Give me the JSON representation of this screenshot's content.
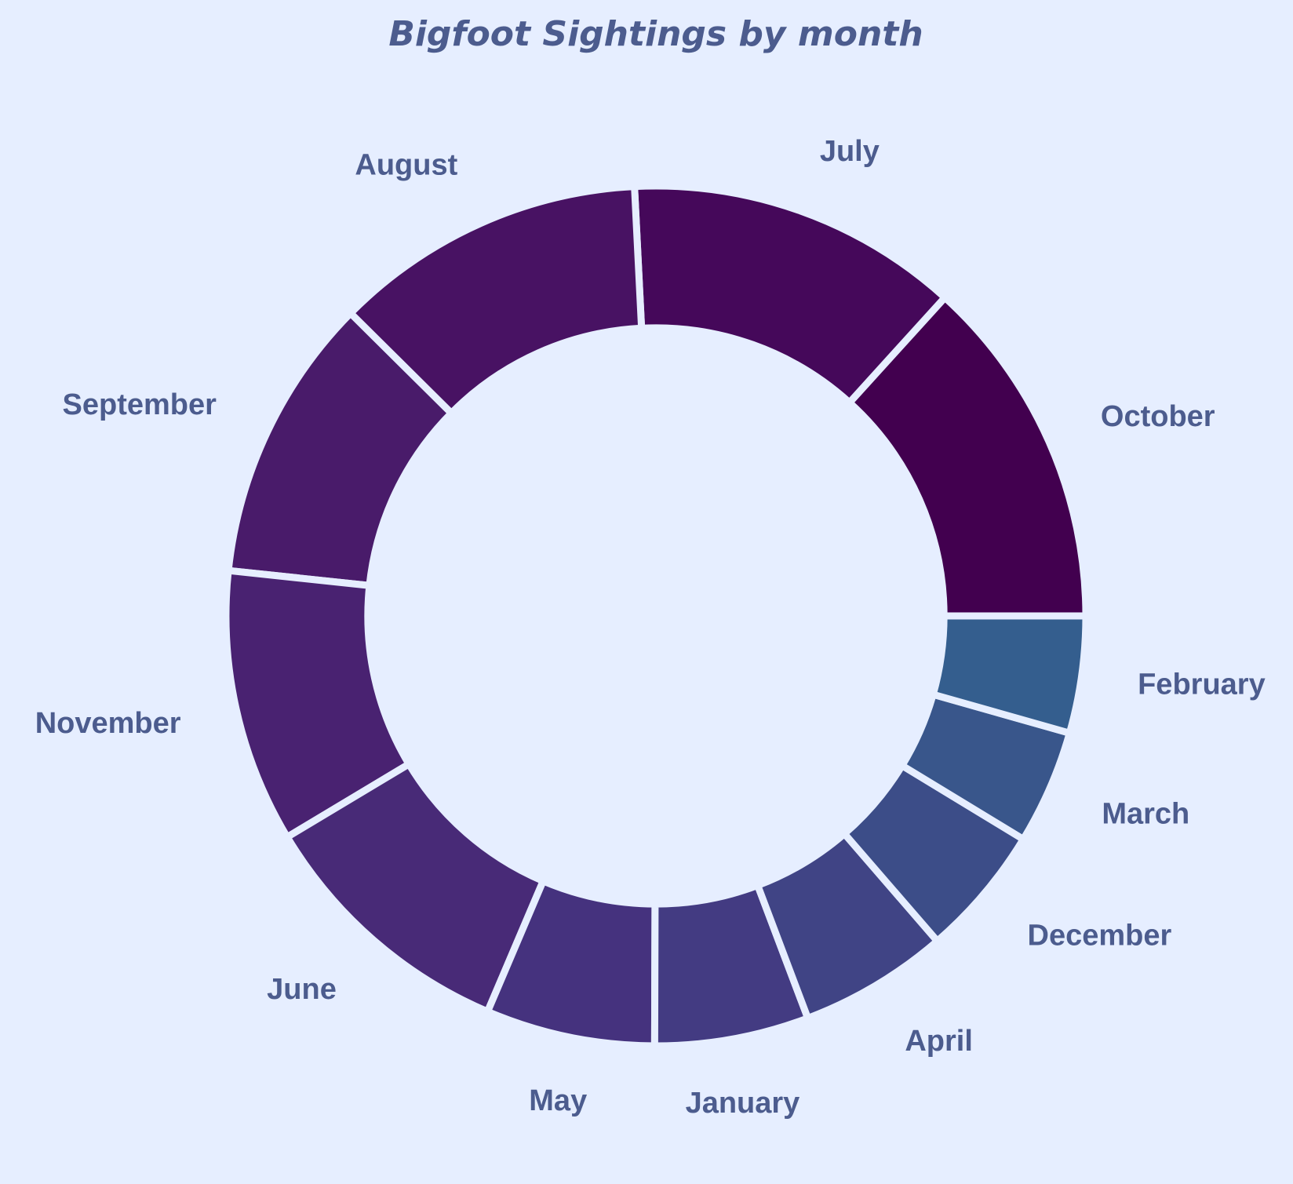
{
  "chart_data": {
    "type": "pie",
    "title": "Bigfoot Sightings by month",
    "hole": 0.67,
    "start_angle_deg": 0,
    "direction": "counterclockwise",
    "background_color": "#e6eeff",
    "label_color": "#4c5c8e",
    "slices": [
      {
        "label": "October",
        "value": 14.2,
        "color": "#42004f"
      },
      {
        "label": "July",
        "value": 13.4,
        "color": "#45085a"
      },
      {
        "label": "August",
        "value": 12.6,
        "color": "#481263"
      },
      {
        "label": "September",
        "value": 11.5,
        "color": "#491b6a"
      },
      {
        "label": "November",
        "value": 11.0,
        "color": "#492271"
      },
      {
        "label": "June",
        "value": 10.7,
        "color": "#482a77"
      },
      {
        "label": "May",
        "value": 6.8,
        "color": "#45327e"
      },
      {
        "label": "January",
        "value": 6.2,
        "color": "#433b82"
      },
      {
        "label": "April",
        "value": 6.0,
        "color": "#404485"
      },
      {
        "label": "December",
        "value": 5.3,
        "color": "#3c4d88"
      },
      {
        "label": "March",
        "value": 4.6,
        "color": "#39568b"
      },
      {
        "label": "February",
        "value": 4.7,
        "color": "#345e8e"
      }
    ]
  }
}
